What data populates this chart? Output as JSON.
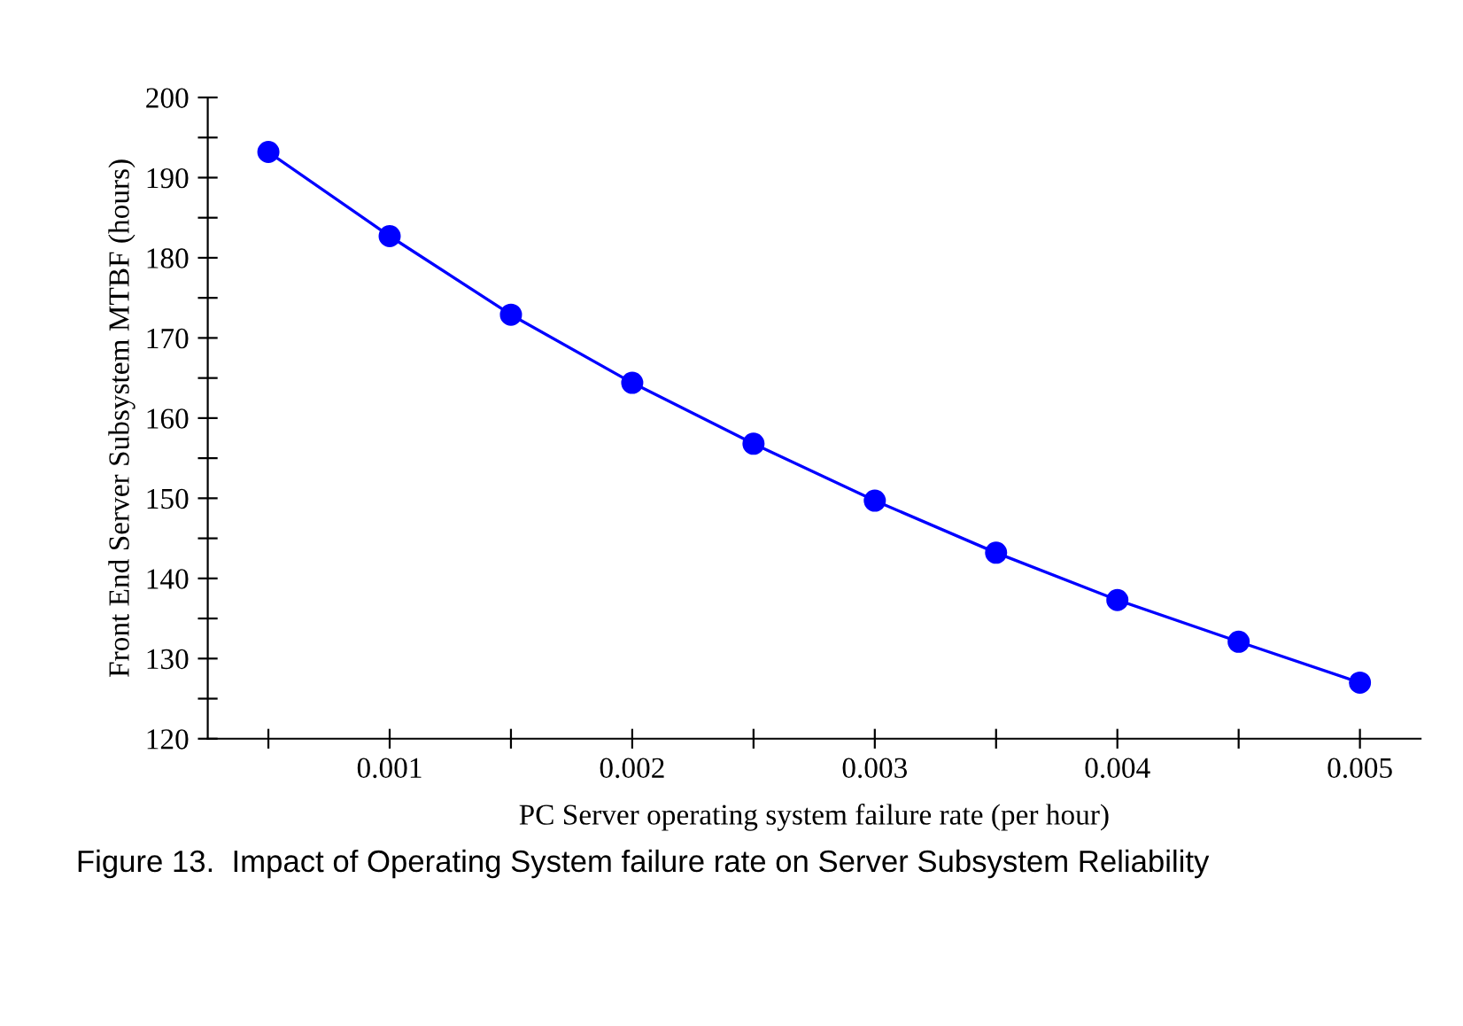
{
  "chart_data": {
    "type": "line",
    "xlabel": "PC Server operating system failure rate (per hour)",
    "ylabel": "Front End Server Subsystem MTBF (hours)",
    "annotations": [
      "Figure 13.  Impact of Operating System failure rate on Server Subsystem Reliability"
    ],
    "x": [
      0.0005,
      0.001,
      0.0015,
      0.002,
      0.0025,
      0.003,
      0.0035,
      0.004,
      0.0045,
      0.005
    ],
    "series": [
      {
        "color": "#0000ff",
        "values": [
          193.2,
          182.7,
          172.9,
          164.4,
          156.8,
          149.7,
          143.2,
          137.3,
          132.1,
          127.0
        ]
      }
    ],
    "xlim": [
      0.00025,
      0.00525
    ],
    "xticks": [
      {
        "value": 0.0005,
        "label": null
      },
      0.001,
      {
        "value": 0.0015,
        "label": null
      },
      0.002,
      {
        "value": 0.0025,
        "label": null
      },
      0.003,
      {
        "value": 0.0035,
        "label": null
      },
      0.004,
      {
        "value": 0.0045,
        "label": null
      },
      0.005
    ],
    "ylim": [
      120,
      200
    ],
    "yticks": [
      120,
      {
        "value": 125,
        "label": null
      },
      130,
      {
        "value": 135,
        "label": null
      },
      140,
      {
        "value": 145,
        "label": null
      },
      150,
      {
        "value": 155,
        "label": null
      },
      160,
      {
        "value": 165,
        "label": null
      },
      170,
      {
        "value": 175,
        "label": null
      },
      180,
      {
        "value": 185,
        "label": null
      },
      190,
      {
        "value": 195,
        "label": null
      },
      200
    ],
    "marker": "circle",
    "line_style": "solid",
    "grid": false,
    "legend": false
  }
}
